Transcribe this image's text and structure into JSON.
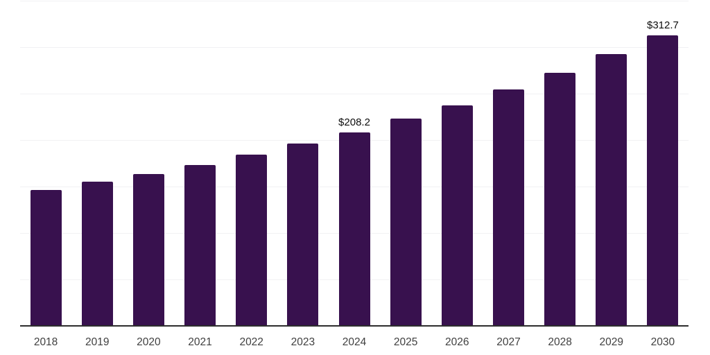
{
  "chart_data": {
    "type": "bar",
    "title": "",
    "xlabel": "",
    "ylabel": "",
    "categories": [
      "2018",
      "2019",
      "2020",
      "2021",
      "2022",
      "2023",
      "2024",
      "2025",
      "2026",
      "2027",
      "2028",
      "2029",
      "2030"
    ],
    "values": [
      146.6,
      154.9,
      163.1,
      173.5,
      184.0,
      195.9,
      208.2,
      222.8,
      237.3,
      254.6,
      272.5,
      292.3,
      312.7
    ],
    "bar_labels": {
      "2024": "$208.2",
      "2030": "$312.7"
    },
    "ylim": [
      0,
      350
    ],
    "gridline_step": 50,
    "grid": "horizontal",
    "legend": "none",
    "colors": {
      "bar_fill": "#38114e",
      "gridline": "#f1f1f3",
      "axis_line": "#2d2d2d",
      "tick_label": "#3f3f3f",
      "value_label": "#0d0d0d",
      "background": "#ffffff"
    }
  }
}
